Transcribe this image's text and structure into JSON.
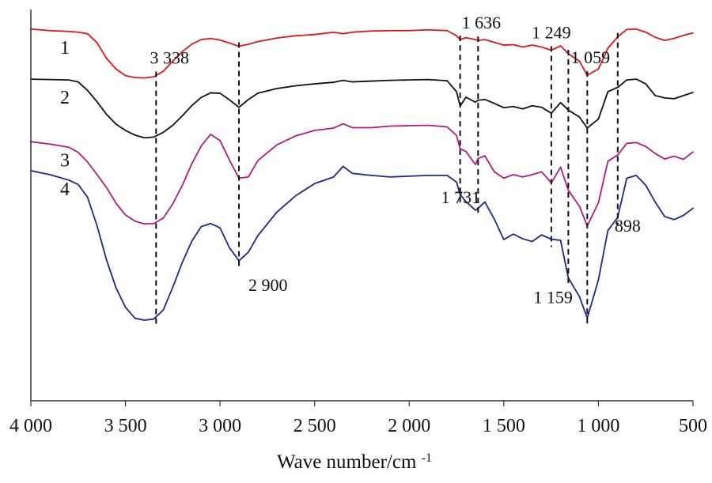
{
  "chart_data": {
    "type": "line",
    "title": "",
    "xlabel": "Wave number/cm",
    "xlabel_superscript": "-1",
    "ylabel": "",
    "xlim": [
      4000,
      500
    ],
    "ylim": [
      0,
      100
    ],
    "grid": false,
    "x_ticks": [
      {
        "value": 4000,
        "label": "4 000"
      },
      {
        "value": 3500,
        "label": "3 500"
      },
      {
        "value": 3000,
        "label": "3 000"
      },
      {
        "value": 2500,
        "label": "2 500"
      },
      {
        "value": 2000,
        "label": "2 000"
      },
      {
        "value": 1500,
        "label": "1 500"
      },
      {
        "value": 1000,
        "label": "1 000"
      },
      {
        "value": 500,
        "label": "500"
      }
    ],
    "peak_markers": [
      {
        "value": 3338,
        "label": "3 338",
        "label_position": "top"
      },
      {
        "value": 2900,
        "label": "2 900",
        "label_position": "bottom"
      },
      {
        "value": 1731,
        "label": "1 731",
        "label_position": "bottom"
      },
      {
        "value": 1636,
        "label": "1 636",
        "label_position": "top"
      },
      {
        "value": 1249,
        "label": "1 249",
        "label_position": "top"
      },
      {
        "value": 1159,
        "label": "1 159",
        "label_position": "bottom"
      },
      {
        "value": 1059,
        "label": "1 059",
        "label_position": "top"
      },
      {
        "value": 898,
        "label": "898",
        "label_position": "bottom"
      }
    ],
    "series": [
      {
        "name": "1",
        "color": "#e01616",
        "x": [
          4000,
          3900,
          3800,
          3750,
          3700,
          3650,
          3600,
          3550,
          3500,
          3450,
          3400,
          3350,
          3300,
          3250,
          3200,
          3150,
          3100,
          3050,
          3000,
          2950,
          2900,
          2850,
          2800,
          2700,
          2600,
          2500,
          2400,
          2350,
          2300,
          2200,
          2100,
          2000,
          1900,
          1800,
          1750,
          1731,
          1700,
          1650,
          1636,
          1600,
          1550,
          1500,
          1450,
          1400,
          1350,
          1300,
          1249,
          1200,
          1159,
          1100,
          1059,
          1000,
          950,
          898,
          850,
          800,
          750,
          700,
          650,
          600,
          550,
          500
        ],
        "values": [
          95,
          94.6,
          94.4,
          94.2,
          93.8,
          91.5,
          87.5,
          84.8,
          83.1,
          82.6,
          82.5,
          82.8,
          84.2,
          86.8,
          89.2,
          91.1,
          92.3,
          92.6,
          92.2,
          91.4,
          90.6,
          91.1,
          91.8,
          92.7,
          93.3,
          93.6,
          94.2,
          93.8,
          94.2,
          94.5,
          94.6,
          94.6,
          94.8,
          94.6,
          93.3,
          92.3,
          92.8,
          92.3,
          92.1,
          92.3,
          91.6,
          90.9,
          91.0,
          90.4,
          90.9,
          90.4,
          89.6,
          90.7,
          88.7,
          86.8,
          83.2,
          84.8,
          90.1,
          93.0,
          94.9,
          95.0,
          94.2,
          92.9,
          92.1,
          92.6,
          93.4,
          94.0
        ]
      },
      {
        "name": "2",
        "color": "#111111",
        "x": [
          4000,
          3900,
          3800,
          3750,
          3700,
          3650,
          3600,
          3550,
          3500,
          3450,
          3400,
          3350,
          3300,
          3250,
          3200,
          3150,
          3100,
          3050,
          3000,
          2950,
          2900,
          2850,
          2800,
          2700,
          2600,
          2500,
          2400,
          2350,
          2300,
          2200,
          2100,
          2000,
          1900,
          1800,
          1750,
          1731,
          1700,
          1650,
          1636,
          1600,
          1550,
          1500,
          1450,
          1400,
          1350,
          1300,
          1249,
          1200,
          1159,
          1100,
          1059,
          1000,
          950,
          898,
          850,
          800,
          750,
          700,
          650,
          600,
          550,
          500
        ],
        "values": [
          82.2,
          82.1,
          82.0,
          81.5,
          79.3,
          76.4,
          73.2,
          70.7,
          69.1,
          67.9,
          67.2,
          67.4,
          68.6,
          70.4,
          72.8,
          75.4,
          77.5,
          78.7,
          78.6,
          76.9,
          75.0,
          77.0,
          78.6,
          79.8,
          80.5,
          81.0,
          81.4,
          81.9,
          81.5,
          81.7,
          81.9,
          82.0,
          82.1,
          81.8,
          79.0,
          75.3,
          77.6,
          76.3,
          76.8,
          77.0,
          76.0,
          74.9,
          75.2,
          74.6,
          75.4,
          75.0,
          73.5,
          76.2,
          74.3,
          72.5,
          69.7,
          72.0,
          79.0,
          80.1,
          82.0,
          82.2,
          81.0,
          78.0,
          77.4,
          77.2,
          78.0,
          78.8
        ]
      },
      {
        "name": "3",
        "color": "#b31a86",
        "x": [
          4000,
          3900,
          3800,
          3750,
          3700,
          3650,
          3600,
          3550,
          3500,
          3450,
          3400,
          3350,
          3300,
          3250,
          3200,
          3150,
          3100,
          3050,
          3000,
          2950,
          2900,
          2850,
          2800,
          2700,
          2600,
          2500,
          2400,
          2350,
          2300,
          2200,
          2100,
          2000,
          1900,
          1800,
          1750,
          1731,
          1700,
          1650,
          1636,
          1600,
          1550,
          1500,
          1450,
          1400,
          1350,
          1300,
          1249,
          1200,
          1159,
          1100,
          1059,
          1000,
          950,
          898,
          850,
          800,
          750,
          700,
          650,
          600,
          550,
          500
        ],
        "values": [
          66.2,
          65.6,
          64.8,
          63.5,
          61.0,
          57.8,
          54.5,
          50.5,
          47.5,
          45.9,
          45.2,
          45.3,
          46.7,
          50.3,
          55.0,
          60.5,
          65.1,
          68.1,
          66.5,
          61.5,
          56.9,
          57.2,
          61.4,
          65.4,
          67.7,
          69.1,
          69.7,
          70.8,
          69.8,
          69.8,
          70.2,
          70.3,
          70.4,
          70.0,
          67.8,
          64.4,
          63.7,
          60.4,
          61.9,
          62.6,
          58.5,
          56.9,
          57.8,
          57.2,
          57.8,
          58.5,
          55.7,
          59.7,
          53.8,
          49.7,
          44.7,
          50.6,
          61.2,
          62.8,
          65.8,
          66.0,
          65.0,
          63.2,
          61.8,
          62.5,
          61.7,
          63.6
        ]
      },
      {
        "name": "4",
        "color": "#1a2a8a",
        "x": [
          4000,
          3900,
          3800,
          3750,
          3700,
          3650,
          3600,
          3550,
          3500,
          3450,
          3400,
          3350,
          3300,
          3250,
          3200,
          3150,
          3100,
          3050,
          3000,
          2950,
          2900,
          2850,
          2800,
          2700,
          2600,
          2500,
          2400,
          2350,
          2300,
          2200,
          2100,
          2000,
          1900,
          1800,
          1750,
          1731,
          1700,
          1650,
          1636,
          1600,
          1550,
          1500,
          1450,
          1400,
          1350,
          1300,
          1249,
          1200,
          1159,
          1100,
          1059,
          1000,
          950,
          898,
          850,
          800,
          750,
          700,
          650,
          600,
          550,
          500
        ],
        "values": [
          58.8,
          57.8,
          56.4,
          55.3,
          52.0,
          44.7,
          36.0,
          28.9,
          23.9,
          21.1,
          20.6,
          20.9,
          23.2,
          29.0,
          35.3,
          40.7,
          44.5,
          45.3,
          44.2,
          39.1,
          35.8,
          38.0,
          42.2,
          48.2,
          52.4,
          55.5,
          57.2,
          59.9,
          58.1,
          57.6,
          57.2,
          57.4,
          57.6,
          57.6,
          55.9,
          52.7,
          50.9,
          48.7,
          49.2,
          50.8,
          46.4,
          41.2,
          42.6,
          41.4,
          40.7,
          42.4,
          41.3,
          41.0,
          31.4,
          26.6,
          21.1,
          30.9,
          43.5,
          46.9,
          56.9,
          57.6,
          55.1,
          50.8,
          47.1,
          46.3,
          47.4,
          49.2
        ]
      }
    ]
  }
}
